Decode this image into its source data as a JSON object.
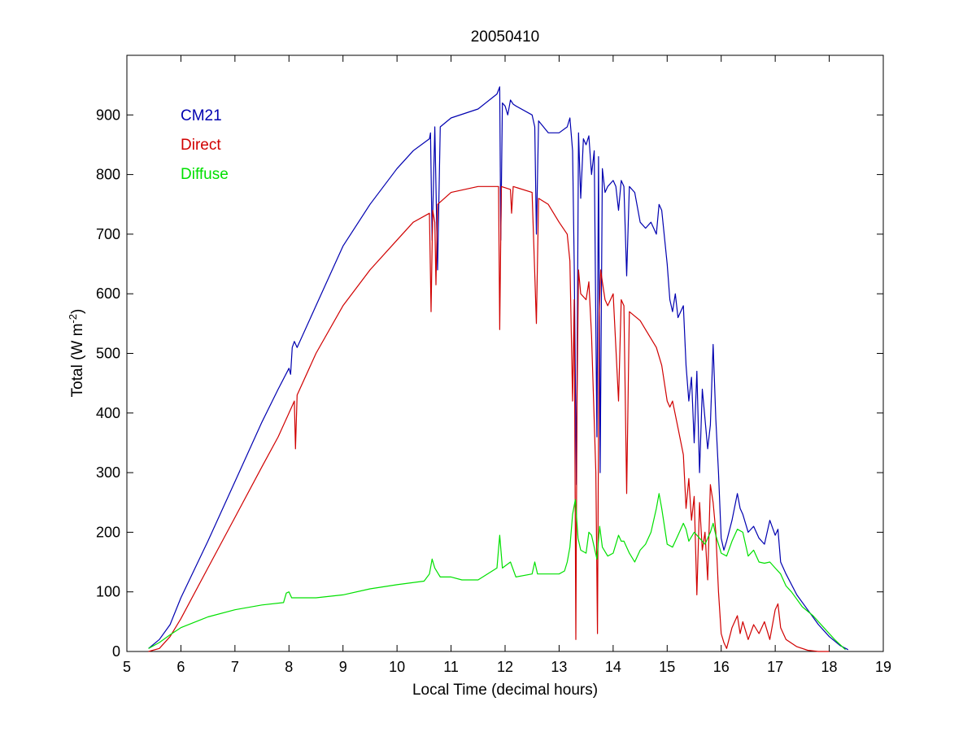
{
  "chart_data": {
    "type": "line",
    "title": "20050410",
    "xlabel": "Local Time (decimal hours)",
    "ylabel": {
      "prefix": "Total (W m",
      "sup": "-2",
      "suffix": ")"
    },
    "xlim": [
      5,
      19
    ],
    "ylim": [
      0,
      1000
    ],
    "x_ticks": [
      5,
      6,
      7,
      8,
      9,
      10,
      11,
      12,
      13,
      14,
      15,
      16,
      17,
      18,
      19
    ],
    "y_ticks": [
      0,
      100,
      200,
      300,
      400,
      500,
      600,
      700,
      800,
      900
    ],
    "grid": false,
    "legend_position": "top-left",
    "series": [
      {
        "name": "CM21",
        "color": "#0000b0",
        "points": [
          [
            5.4,
            5
          ],
          [
            5.6,
            20
          ],
          [
            5.8,
            45
          ],
          [
            6.0,
            90
          ],
          [
            6.5,
            185
          ],
          [
            7.0,
            285
          ],
          [
            7.5,
            385
          ],
          [
            7.8,
            440
          ],
          [
            8.0,
            475
          ],
          [
            8.03,
            465
          ],
          [
            8.06,
            510
          ],
          [
            8.1,
            520
          ],
          [
            8.15,
            510
          ],
          [
            8.5,
            580
          ],
          [
            9.0,
            680
          ],
          [
            9.5,
            750
          ],
          [
            10.0,
            810
          ],
          [
            10.3,
            840
          ],
          [
            10.6,
            860
          ],
          [
            10.62,
            870
          ],
          [
            10.65,
            690
          ],
          [
            10.7,
            880
          ],
          [
            10.75,
            640
          ],
          [
            10.8,
            880
          ],
          [
            11.0,
            895
          ],
          [
            11.5,
            910
          ],
          [
            11.85,
            935
          ],
          [
            11.9,
            947
          ],
          [
            11.92,
            690
          ],
          [
            11.95,
            920
          ],
          [
            12.0,
            915
          ],
          [
            12.05,
            900
          ],
          [
            12.1,
            925
          ],
          [
            12.15,
            918
          ],
          [
            12.2,
            915
          ],
          [
            12.5,
            900
          ],
          [
            12.55,
            880
          ],
          [
            12.58,
            700
          ],
          [
            12.62,
            890
          ],
          [
            12.8,
            870
          ],
          [
            13.0,
            870
          ],
          [
            13.15,
            880
          ],
          [
            13.2,
            895
          ],
          [
            13.25,
            840
          ],
          [
            13.28,
            650
          ],
          [
            13.32,
            280
          ],
          [
            13.36,
            870
          ],
          [
            13.4,
            760
          ],
          [
            13.45,
            860
          ],
          [
            13.5,
            850
          ],
          [
            13.55,
            865
          ],
          [
            13.6,
            800
          ],
          [
            13.65,
            840
          ],
          [
            13.7,
            360
          ],
          [
            13.73,
            830
          ],
          [
            13.76,
            300
          ],
          [
            13.8,
            810
          ],
          [
            13.85,
            770
          ],
          [
            13.9,
            780
          ],
          [
            14.0,
            790
          ],
          [
            14.05,
            780
          ],
          [
            14.1,
            740
          ],
          [
            14.15,
            790
          ],
          [
            14.2,
            780
          ],
          [
            14.25,
            630
          ],
          [
            14.3,
            780
          ],
          [
            14.4,
            770
          ],
          [
            14.5,
            720
          ],
          [
            14.6,
            710
          ],
          [
            14.7,
            720
          ],
          [
            14.8,
            700
          ],
          [
            14.85,
            750
          ],
          [
            14.9,
            740
          ],
          [
            15.0,
            650
          ],
          [
            15.05,
            590
          ],
          [
            15.1,
            570
          ],
          [
            15.15,
            600
          ],
          [
            15.2,
            560
          ],
          [
            15.3,
            580
          ],
          [
            15.35,
            480
          ],
          [
            15.4,
            420
          ],
          [
            15.45,
            460
          ],
          [
            15.5,
            350
          ],
          [
            15.55,
            470
          ],
          [
            15.6,
            300
          ],
          [
            15.65,
            440
          ],
          [
            15.7,
            390
          ],
          [
            15.75,
            340
          ],
          [
            15.8,
            380
          ],
          [
            15.85,
            515
          ],
          [
            15.9,
            390
          ],
          [
            15.95,
            300
          ],
          [
            16.0,
            190
          ],
          [
            16.05,
            170
          ],
          [
            16.1,
            185
          ],
          [
            16.2,
            220
          ],
          [
            16.3,
            265
          ],
          [
            16.35,
            240
          ],
          [
            16.4,
            230
          ],
          [
            16.5,
            200
          ],
          [
            16.6,
            210
          ],
          [
            16.7,
            190
          ],
          [
            16.8,
            180
          ],
          [
            16.9,
            220
          ],
          [
            17.0,
            195
          ],
          [
            17.05,
            205
          ],
          [
            17.1,
            150
          ],
          [
            17.2,
            130
          ],
          [
            17.4,
            95
          ],
          [
            17.6,
            70
          ],
          [
            17.8,
            45
          ],
          [
            18.0,
            25
          ],
          [
            18.2,
            10
          ],
          [
            18.35,
            3
          ]
        ]
      },
      {
        "name": "Direct",
        "color": "#d00000",
        "points": [
          [
            5.4,
            0
          ],
          [
            5.6,
            5
          ],
          [
            5.8,
            25
          ],
          [
            6.0,
            55
          ],
          [
            6.5,
            140
          ],
          [
            7.0,
            225
          ],
          [
            7.5,
            310
          ],
          [
            7.8,
            360
          ],
          [
            8.0,
            400
          ],
          [
            8.1,
            420
          ],
          [
            8.12,
            340
          ],
          [
            8.15,
            430
          ],
          [
            8.5,
            500
          ],
          [
            9.0,
            580
          ],
          [
            9.5,
            640
          ],
          [
            10.0,
            690
          ],
          [
            10.3,
            720
          ],
          [
            10.6,
            735
          ],
          [
            10.63,
            570
          ],
          [
            10.66,
            740
          ],
          [
            10.7,
            720
          ],
          [
            10.72,
            615
          ],
          [
            10.75,
            750
          ],
          [
            11.0,
            770
          ],
          [
            11.5,
            780
          ],
          [
            11.88,
            780
          ],
          [
            11.9,
            540
          ],
          [
            11.93,
            780
          ],
          [
            12.1,
            775
          ],
          [
            12.12,
            735
          ],
          [
            12.15,
            780
          ],
          [
            12.5,
            770
          ],
          [
            12.58,
            550
          ],
          [
            12.62,
            760
          ],
          [
            12.8,
            750
          ],
          [
            13.0,
            720
          ],
          [
            13.15,
            700
          ],
          [
            13.2,
            655
          ],
          [
            13.25,
            420
          ],
          [
            13.28,
            590
          ],
          [
            13.31,
            20
          ],
          [
            13.33,
            410
          ],
          [
            13.36,
            640
          ],
          [
            13.4,
            600
          ],
          [
            13.5,
            590
          ],
          [
            13.55,
            620
          ],
          [
            13.6,
            530
          ],
          [
            13.68,
            300
          ],
          [
            13.71,
            30
          ],
          [
            13.74,
            560
          ],
          [
            13.77,
            640
          ],
          [
            13.8,
            620
          ],
          [
            13.85,
            590
          ],
          [
            13.9,
            580
          ],
          [
            14.0,
            600
          ],
          [
            14.1,
            420
          ],
          [
            14.15,
            590
          ],
          [
            14.2,
            580
          ],
          [
            14.25,
            265
          ],
          [
            14.3,
            570
          ],
          [
            14.5,
            555
          ],
          [
            14.6,
            540
          ],
          [
            14.8,
            510
          ],
          [
            14.9,
            480
          ],
          [
            15.0,
            420
          ],
          [
            15.05,
            410
          ],
          [
            15.1,
            420
          ],
          [
            15.2,
            375
          ],
          [
            15.3,
            330
          ],
          [
            15.35,
            240
          ],
          [
            15.4,
            290
          ],
          [
            15.45,
            220
          ],
          [
            15.5,
            260
          ],
          [
            15.55,
            95
          ],
          [
            15.6,
            250
          ],
          [
            15.65,
            170
          ],
          [
            15.7,
            200
          ],
          [
            15.75,
            120
          ],
          [
            15.8,
            280
          ],
          [
            15.85,
            250
          ],
          [
            15.9,
            200
          ],
          [
            15.95,
            100
          ],
          [
            16.0,
            30
          ],
          [
            16.05,
            15
          ],
          [
            16.1,
            5
          ],
          [
            16.2,
            40
          ],
          [
            16.3,
            60
          ],
          [
            16.35,
            30
          ],
          [
            16.4,
            50
          ],
          [
            16.5,
            20
          ],
          [
            16.6,
            45
          ],
          [
            16.7,
            30
          ],
          [
            16.8,
            50
          ],
          [
            16.9,
            20
          ],
          [
            17.0,
            70
          ],
          [
            17.05,
            80
          ],
          [
            17.1,
            40
          ],
          [
            17.2,
            20
          ],
          [
            17.4,
            8
          ],
          [
            17.6,
            2
          ],
          [
            17.8,
            0
          ],
          [
            18.0,
            0
          ]
        ]
      },
      {
        "name": "Diffuse",
        "color": "#00e000",
        "points": [
          [
            5.4,
            5
          ],
          [
            5.6,
            15
          ],
          [
            5.8,
            28
          ],
          [
            6.0,
            40
          ],
          [
            6.5,
            58
          ],
          [
            7.0,
            70
          ],
          [
            7.5,
            78
          ],
          [
            7.9,
            82
          ],
          [
            7.95,
            98
          ],
          [
            8.0,
            100
          ],
          [
            8.05,
            90
          ],
          [
            8.5,
            90
          ],
          [
            9.0,
            95
          ],
          [
            9.5,
            105
          ],
          [
            10.0,
            112
          ],
          [
            10.5,
            118
          ],
          [
            10.6,
            130
          ],
          [
            10.65,
            155
          ],
          [
            10.7,
            140
          ],
          [
            10.8,
            125
          ],
          [
            11.0,
            125
          ],
          [
            11.2,
            120
          ],
          [
            11.5,
            120
          ],
          [
            11.85,
            140
          ],
          [
            11.9,
            195
          ],
          [
            11.95,
            140
          ],
          [
            12.1,
            150
          ],
          [
            12.2,
            125
          ],
          [
            12.5,
            130
          ],
          [
            12.55,
            150
          ],
          [
            12.6,
            130
          ],
          [
            13.0,
            130
          ],
          [
            13.1,
            135
          ],
          [
            13.15,
            150
          ],
          [
            13.2,
            175
          ],
          [
            13.25,
            230
          ],
          [
            13.3,
            255
          ],
          [
            13.35,
            190
          ],
          [
            13.4,
            170
          ],
          [
            13.5,
            165
          ],
          [
            13.55,
            200
          ],
          [
            13.6,
            195
          ],
          [
            13.7,
            155
          ],
          [
            13.75,
            210
          ],
          [
            13.8,
            175
          ],
          [
            13.9,
            160
          ],
          [
            14.0,
            165
          ],
          [
            14.1,
            195
          ],
          [
            14.15,
            185
          ],
          [
            14.2,
            185
          ],
          [
            14.3,
            165
          ],
          [
            14.4,
            150
          ],
          [
            14.5,
            170
          ],
          [
            14.6,
            180
          ],
          [
            14.7,
            200
          ],
          [
            14.8,
            240
          ],
          [
            14.85,
            265
          ],
          [
            14.9,
            240
          ],
          [
            15.0,
            180
          ],
          [
            15.1,
            175
          ],
          [
            15.2,
            195
          ],
          [
            15.3,
            215
          ],
          [
            15.35,
            205
          ],
          [
            15.4,
            185
          ],
          [
            15.5,
            200
          ],
          [
            15.6,
            190
          ],
          [
            15.7,
            180
          ],
          [
            15.8,
            200
          ],
          [
            15.85,
            215
          ],
          [
            15.9,
            195
          ],
          [
            16.0,
            165
          ],
          [
            16.1,
            160
          ],
          [
            16.2,
            185
          ],
          [
            16.3,
            205
          ],
          [
            16.4,
            200
          ],
          [
            16.5,
            160
          ],
          [
            16.6,
            170
          ],
          [
            16.7,
            150
          ],
          [
            16.8,
            148
          ],
          [
            16.9,
            150
          ],
          [
            17.0,
            140
          ],
          [
            17.1,
            130
          ],
          [
            17.2,
            110
          ],
          [
            17.3,
            100
          ],
          [
            17.5,
            75
          ],
          [
            17.7,
            60
          ],
          [
            17.9,
            40
          ],
          [
            18.1,
            20
          ],
          [
            18.3,
            3
          ]
        ]
      }
    ]
  }
}
